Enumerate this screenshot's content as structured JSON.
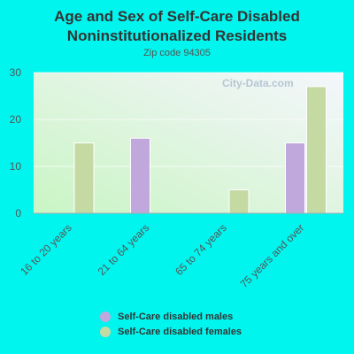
{
  "chart_data": {
    "type": "bar",
    "title": "Age and Sex of Self-Care Disabled Noninstitutionalized Residents",
    "subtitle": "Zip code 94305",
    "categories": [
      "16 to 20 years",
      "21 to 64 years",
      "65 to 74 years",
      "75 years and over"
    ],
    "series": [
      {
        "name": "Self-Care disabled males",
        "color": "#c0a8dc",
        "values": [
          0,
          16,
          0,
          15
        ]
      },
      {
        "name": "Self-Care disabled females",
        "color": "#c5d9a3",
        "values": [
          15,
          0,
          5,
          27
        ]
      }
    ],
    "yticks": [
      0,
      10,
      20,
      30
    ],
    "ylim": [
      0,
      30
    ],
    "grid": true,
    "legend_position": "bottom"
  }
}
